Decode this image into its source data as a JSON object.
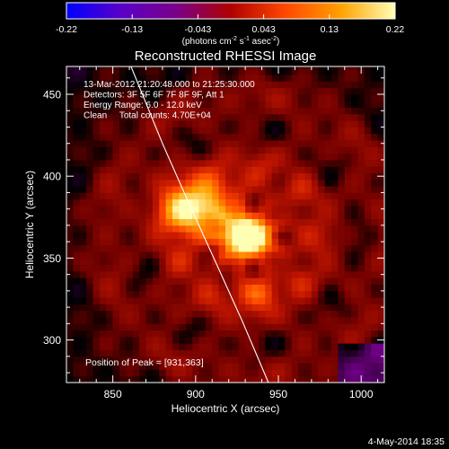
{
  "chart_data": {
    "type": "heatmap",
    "title": "Reconstructed RHESSI Image",
    "xlabel": "Heliocentric X (arcsec)",
    "ylabel": "Heliocentric Y (arcsec)",
    "xlim": [
      822,
      1014
    ],
    "ylim": [
      274,
      467
    ],
    "x_ticks": [
      850,
      900,
      950,
      1000
    ],
    "y_ticks": [
      300,
      350,
      400,
      450
    ],
    "colorbar": {
      "range": [
        -0.22,
        0.22
      ],
      "ticks": [
        "-0.22",
        "-0.13",
        "-0.043",
        "0.043",
        "0.13",
        "0.22"
      ],
      "unit_parts": [
        "(photons cm",
        "-2",
        " s",
        "-1",
        " asec",
        "-2",
        ")"
      ],
      "colors": [
        "#0000ff",
        "#5a00c8",
        "#7a0088",
        "#b00000",
        "#ff4800",
        "#ffa000",
        "#ffffb4"
      ]
    },
    "annotations": [
      "13-Mar-2012 21:20:48.000 to 21:25:30.000",
      "Detectors: 3F 5F 6F 7F 8F 9F, Att 1",
      "Energy Range: 6.0 - 12.0 keV",
      "Clean     Total counts: 4.70E+04"
    ],
    "peak_label": "Position of Peak = [931,363]",
    "peak": [
      931,
      363
    ],
    "sources": [
      {
        "x": 931,
        "y": 363,
        "amplitude": 0.22
      },
      {
        "x": 900,
        "y": 381,
        "amplitude": 0.18
      },
      {
        "x": 937,
        "y": 330,
        "amplitude": 0.07
      }
    ],
    "limb_curve": [
      [
        861,
        467
      ],
      [
        880,
        420
      ],
      [
        897,
        381
      ],
      [
        911,
        350
      ],
      [
        928,
        312
      ],
      [
        944,
        274
      ]
    ],
    "footer_date": "4-May-2014 18:35"
  }
}
